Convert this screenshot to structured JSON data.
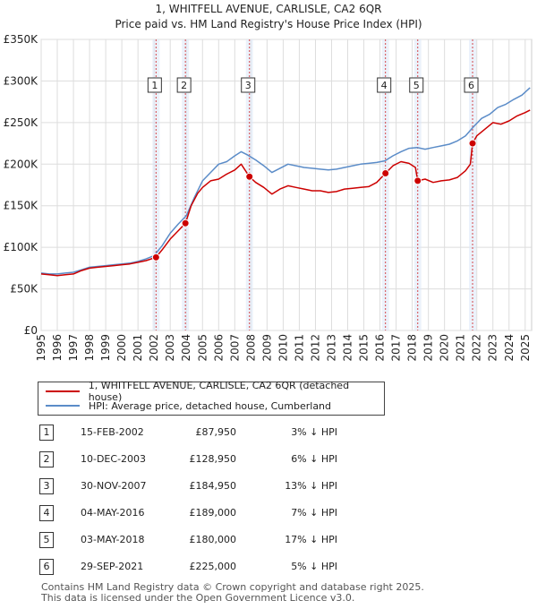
{
  "chart_data": {
    "type": "line",
    "title": "1, WHITFELL AVENUE, CARLISLE, CA2 6QR",
    "subtitle": "Price paid vs. HM Land Registry's House Price Index (HPI)",
    "xlim": [
      1995,
      2025.4
    ],
    "ylim": [
      0,
      350000
    ],
    "y_ticks": [
      {
        "value": 0,
        "label": "£0"
      },
      {
        "value": 50000,
        "label": "£50K"
      },
      {
        "value": 100000,
        "label": "£100K"
      },
      {
        "value": 150000,
        "label": "£150K"
      },
      {
        "value": 200000,
        "label": "£200K"
      },
      {
        "value": 250000,
        "label": "£250K"
      },
      {
        "value": 300000,
        "label": "£300K"
      },
      {
        "value": 350000,
        "label": "£350K"
      }
    ],
    "x_ticks": [
      "1995",
      "1996",
      "1997",
      "1998",
      "1999",
      "2000",
      "2001",
      "2002",
      "2003",
      "2004",
      "2005",
      "2006",
      "2007",
      "2008",
      "2009",
      "2010",
      "2011",
      "2012",
      "2013",
      "2014",
      "2015",
      "2016",
      "2017",
      "2018",
      "2019",
      "2020",
      "2021",
      "2022",
      "2023",
      "2024",
      "2025"
    ],
    "grid": true,
    "series": [
      {
        "name": "1, WHITFELL AVENUE, CARLISLE, CA2 6QR (detached house)",
        "color": "#cc0000",
        "x": [
          1995.0,
          1995.5,
          1996.0,
          1996.5,
          1997.0,
          1997.5,
          1998.0,
          1998.5,
          1999.0,
          1999.5,
          2000.0,
          2000.5,
          2001.0,
          2001.5,
          2002.12,
          2002.5,
          2003.0,
          2003.5,
          2003.94,
          2004.3,
          2004.7,
          2005.0,
          2005.5,
          2006.0,
          2006.5,
          2007.0,
          2007.4,
          2007.91,
          2008.3,
          2008.8,
          2009.3,
          2009.8,
          2010.3,
          2010.8,
          2011.3,
          2011.8,
          2012.3,
          2012.8,
          2013.3,
          2013.8,
          2014.3,
          2014.8,
          2015.3,
          2015.8,
          2016.34,
          2016.8,
          2017.3,
          2017.8,
          2018.2,
          2018.34,
          2018.8,
          2019.3,
          2019.8,
          2020.3,
          2020.8,
          2021.3,
          2021.6,
          2021.74,
          2022.0,
          2022.5,
          2023.0,
          2023.5,
          2024.0,
          2024.5,
          2025.0,
          2025.3
        ],
        "y": [
          68000,
          67000,
          66000,
          67000,
          68000,
          72000,
          75000,
          76000,
          77000,
          78000,
          79000,
          80000,
          82000,
          84000,
          87950,
          97000,
          110000,
          120000,
          128950,
          150000,
          165000,
          172000,
          180000,
          182000,
          188000,
          193000,
          200000,
          184950,
          178000,
          172000,
          164000,
          170000,
          174000,
          172000,
          170000,
          168000,
          168000,
          166000,
          167000,
          170000,
          171000,
          172000,
          173000,
          178000,
          189000,
          198000,
          203000,
          201000,
          196000,
          180000,
          182000,
          178000,
          180000,
          181000,
          184000,
          192000,
          200000,
          225000,
          234000,
          242000,
          250000,
          248000,
          252000,
          258000,
          262000,
          265000
        ]
      },
      {
        "name": "HPI: Average price, detached house, Cumberland",
        "color": "#5b8cc8",
        "x": [
          1995.0,
          1995.5,
          1996.0,
          1996.5,
          1997.0,
          1997.5,
          1998.0,
          1998.5,
          1999.0,
          1999.5,
          2000.0,
          2000.5,
          2001.0,
          2001.5,
          2002.0,
          2002.5,
          2003.0,
          2003.5,
          2004.0,
          2004.5,
          2005.0,
          2005.5,
          2006.0,
          2006.5,
          2007.0,
          2007.4,
          2007.8,
          2008.3,
          2008.8,
          2009.3,
          2009.8,
          2010.3,
          2010.8,
          2011.3,
          2011.8,
          2012.3,
          2012.8,
          2013.3,
          2013.8,
          2014.3,
          2014.8,
          2015.3,
          2015.8,
          2016.3,
          2016.8,
          2017.3,
          2017.8,
          2018.3,
          2018.8,
          2019.3,
          2019.8,
          2020.3,
          2020.8,
          2021.3,
          2021.8,
          2022.3,
          2022.8,
          2023.3,
          2023.8,
          2024.3,
          2024.8,
          2025.3
        ],
        "y": [
          69000,
          68000,
          68000,
          69000,
          70000,
          73000,
          76000,
          77000,
          78000,
          79000,
          80000,
          81000,
          83000,
          86000,
          90000,
          102000,
          117000,
          128000,
          138000,
          160000,
          180000,
          190000,
          200000,
          203000,
          210000,
          215000,
          211000,
          205000,
          198000,
          190000,
          195000,
          200000,
          198000,
          196000,
          195000,
          194000,
          193000,
          194000,
          196000,
          198000,
          200000,
          201000,
          202000,
          204000,
          210000,
          215000,
          219000,
          220000,
          218000,
          220000,
          222000,
          224000,
          228000,
          234000,
          245000,
          255000,
          260000,
          268000,
          272000,
          278000,
          283000,
          292000
        ]
      }
    ],
    "sales": [
      {
        "id": "1",
        "x": 2002.12,
        "y": 87950
      },
      {
        "id": "2",
        "x": 2003.94,
        "y": 128950
      },
      {
        "id": "3",
        "x": 2007.91,
        "y": 184950
      },
      {
        "id": "4",
        "x": 2016.34,
        "y": 189000
      },
      {
        "id": "5",
        "x": 2018.34,
        "y": 180000
      },
      {
        "id": "6",
        "x": 2021.74,
        "y": 225000
      }
    ]
  },
  "legend": {
    "property": "1, WHITFELL AVENUE, CARLISLE, CA2 6QR (detached house)",
    "hpi": "HPI: Average price, detached house, Cumberland"
  },
  "colors": {
    "property": "#cc0000",
    "hpi": "#5b8cc8",
    "marker_band": "#dce8f7"
  },
  "table": [
    {
      "num": "1",
      "date": "15-FEB-2002",
      "price": "£87,950",
      "hpi": "3% ↓ HPI"
    },
    {
      "num": "2",
      "date": "10-DEC-2003",
      "price": "£128,950",
      "hpi": "6% ↓ HPI"
    },
    {
      "num": "3",
      "date": "30-NOV-2007",
      "price": "£184,950",
      "hpi": "13% ↓ HPI"
    },
    {
      "num": "4",
      "date": "04-MAY-2016",
      "price": "£189,000",
      "hpi": "7% ↓ HPI"
    },
    {
      "num": "5",
      "date": "03-MAY-2018",
      "price": "£180,000",
      "hpi": "17% ↓ HPI"
    },
    {
      "num": "6",
      "date": "29-SEP-2021",
      "price": "£225,000",
      "hpi": "5% ↓ HPI"
    }
  ],
  "footer": {
    "line1": "Contains HM Land Registry data © Crown copyright and database right 2025.",
    "line2": "This data is licensed under the Open Government Licence v3.0."
  }
}
